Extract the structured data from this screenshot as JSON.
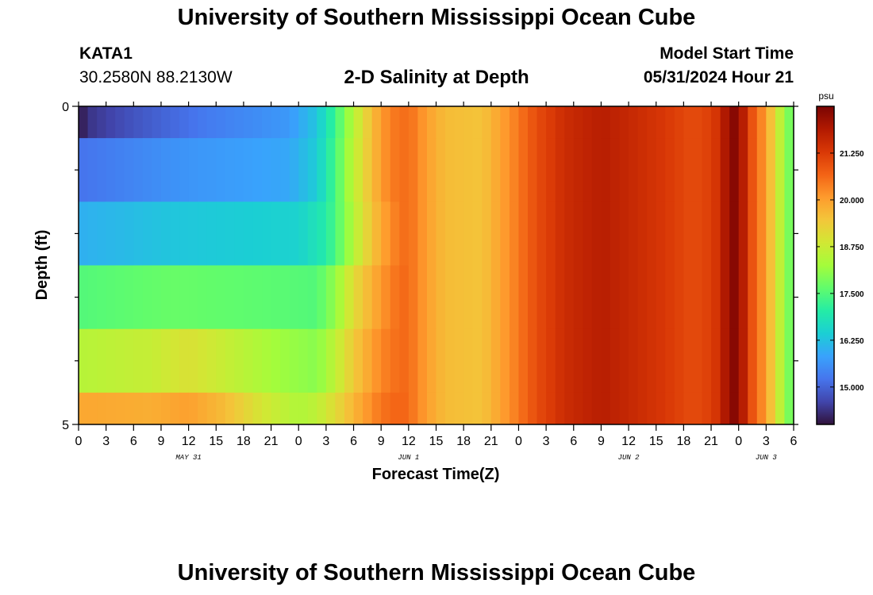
{
  "page": {
    "title": "University of Southern Mississippi Ocean Cube",
    "bottom_title": "University of Southern Mississippi Ocean Cube",
    "station_id": "KATA1",
    "station_coords": "30.2580N  88.2130W",
    "chart_title": "2-D Salinity at Depth",
    "model_start_label": "Model Start Time",
    "model_start_value": "05/31/2024 Hour 21"
  },
  "chart_data": {
    "type": "heatmap",
    "title": "2-D Salinity at Depth",
    "xlabel": "Forecast Time(Z)",
    "ylabel": "Depth (ft)",
    "colorbar_label": "psu",
    "x_start": "2024-05-31 00Z",
    "x_step_hours": 1,
    "x_range_hours": 78,
    "x_tick_labels": [
      "0",
      "3",
      "6",
      "9",
      "12",
      "15",
      "18",
      "21",
      "0",
      "3",
      "6",
      "9",
      "12",
      "15",
      "18",
      "21",
      "0",
      "3",
      "6",
      "9",
      "12",
      "15",
      "18",
      "21",
      "0",
      "3",
      "6"
    ],
    "date_labels": [
      {
        "label": "MAY 31",
        "hour": 12
      },
      {
        "label": "JUN 1",
        "hour": 36
      },
      {
        "label": "JUN 2",
        "hour": 60
      },
      {
        "label": "JUN 3",
        "hour": 75
      }
    ],
    "y_range": [
      0,
      5
    ],
    "y_tick_labels": [
      "0",
      "5"
    ],
    "depth_bands": [
      {
        "label": "0-0.5",
        "y0": 0,
        "y1": 0.5
      },
      {
        "label": "0.5-1.5",
        "y0": 0.5,
        "y1": 1.5
      },
      {
        "label": "1.5-2.5",
        "y0": 1.5,
        "y1": 2.5
      },
      {
        "label": "2.5-3.5",
        "y0": 2.5,
        "y1": 3.5
      },
      {
        "label": "3.5-4.5",
        "y0": 3.5,
        "y1": 4.5
      },
      {
        "label": "4.5-5",
        "y0": 4.5,
        "y1": 5
      }
    ],
    "value_range": [
      14.0,
      22.5
    ],
    "colorbar_ticks": [
      "15.000",
      "16.250",
      "17.500",
      "18.750",
      "20.000",
      "21.250"
    ],
    "colorbar_tick_values": [
      15.0,
      16.25,
      17.5,
      18.75,
      20.0,
      21.25
    ],
    "keypoints": {
      "surface": [
        [
          0,
          14.0
        ],
        [
          1,
          14.4
        ],
        [
          6,
          14.8
        ],
        [
          14,
          15.3
        ],
        [
          23,
          15.7
        ],
        [
          26,
          16.3
        ],
        [
          28,
          17.3
        ],
        [
          30,
          18.5
        ],
        [
          32,
          19.6
        ],
        [
          34,
          20.4
        ],
        [
          36,
          20.6
        ],
        [
          38,
          20.0
        ],
        [
          40,
          19.6
        ],
        [
          44,
          19.5
        ],
        [
          47,
          20.2
        ],
        [
          50,
          21.0
        ],
        [
          53,
          21.5
        ],
        [
          57,
          21.8
        ],
        [
          60,
          21.6
        ],
        [
          64,
          21.3
        ],
        [
          67,
          21.0
        ],
        [
          69,
          21.2
        ],
        [
          70,
          21.5
        ],
        [
          71,
          22.3
        ],
        [
          72,
          22.4
        ],
        [
          73,
          21.2
        ],
        [
          74,
          20.6
        ],
        [
          75,
          20.0
        ],
        [
          76,
          19.1
        ],
        [
          77,
          18.1
        ],
        [
          78,
          17.6
        ]
      ],
      "upper": [
        [
          0,
          15.2
        ],
        [
          10,
          15.6
        ],
        [
          23,
          15.9
        ],
        [
          26,
          16.4
        ],
        [
          28,
          17.4
        ],
        [
          30,
          18.6
        ],
        [
          32,
          19.6
        ],
        [
          34,
          20.4
        ],
        [
          36,
          20.6
        ],
        [
          38,
          20.0
        ],
        [
          40,
          19.6
        ],
        [
          44,
          19.5
        ],
        [
          47,
          20.2
        ],
        [
          50,
          21.0
        ],
        [
          53,
          21.5
        ],
        [
          57,
          21.8
        ],
        [
          60,
          21.6
        ],
        [
          64,
          21.3
        ],
        [
          67,
          21.0
        ],
        [
          69,
          21.2
        ],
        [
          70,
          21.5
        ],
        [
          71,
          22.3
        ],
        [
          72,
          22.4
        ],
        [
          73,
          21.2
        ],
        [
          74,
          20.6
        ],
        [
          75,
          20.0
        ],
        [
          76,
          19.1
        ],
        [
          77,
          18.1
        ],
        [
          78,
          17.6
        ]
      ],
      "middle": [
        [
          0,
          16.0
        ],
        [
          10,
          16.3
        ],
        [
          24,
          16.5
        ],
        [
          27,
          17.0
        ],
        [
          29,
          17.9
        ],
        [
          31,
          19.0
        ],
        [
          33,
          19.9
        ],
        [
          35,
          20.5
        ],
        [
          36,
          20.6
        ],
        [
          38,
          20.0
        ],
        [
          40,
          19.6
        ],
        [
          44,
          19.5
        ],
        [
          47,
          20.2
        ],
        [
          50,
          21.0
        ],
        [
          53,
          21.5
        ],
        [
          57,
          21.8
        ],
        [
          60,
          21.6
        ],
        [
          64,
          21.3
        ],
        [
          67,
          21.0
        ],
        [
          69,
          21.2
        ],
        [
          70,
          21.5
        ],
        [
          71,
          22.3
        ],
        [
          72,
          22.4
        ],
        [
          73,
          21.2
        ],
        [
          74,
          20.6
        ],
        [
          75,
          20.0
        ],
        [
          76,
          19.1
        ],
        [
          77,
          18.1
        ],
        [
          78,
          17.6
        ]
      ],
      "lower_mid": [
        [
          0,
          17.5
        ],
        [
          10,
          17.7
        ],
        [
          20,
          17.6
        ],
        [
          26,
          17.5
        ],
        [
          28,
          18.1
        ],
        [
          30,
          19.1
        ],
        [
          33,
          20.1
        ],
        [
          35,
          20.6
        ],
        [
          36,
          20.6
        ],
        [
          38,
          20.0
        ],
        [
          40,
          19.6
        ],
        [
          44,
          19.5
        ],
        [
          47,
          20.2
        ],
        [
          50,
          21.0
        ],
        [
          53,
          21.5
        ],
        [
          57,
          21.8
        ],
        [
          60,
          21.6
        ],
        [
          64,
          21.3
        ],
        [
          67,
          21.0
        ],
        [
          69,
          21.2
        ],
        [
          70,
          21.5
        ],
        [
          71,
          22.3
        ],
        [
          72,
          22.4
        ],
        [
          73,
          21.2
        ],
        [
          74,
          20.6
        ],
        [
          75,
          20.0
        ],
        [
          76,
          19.1
        ],
        [
          77,
          18.1
        ],
        [
          78,
          17.6
        ]
      ],
      "lower": [
        [
          0,
          18.5
        ],
        [
          8,
          18.7
        ],
        [
          12,
          19.0
        ],
        [
          16,
          18.7
        ],
        [
          22,
          18.2
        ],
        [
          26,
          18.0
        ],
        [
          28,
          18.6
        ],
        [
          30,
          19.4
        ],
        [
          33,
          20.3
        ],
        [
          35,
          20.6
        ],
        [
          36,
          20.6
        ],
        [
          38,
          20.0
        ],
        [
          40,
          19.6
        ],
        [
          44,
          19.5
        ],
        [
          47,
          20.2
        ],
        [
          50,
          21.0
        ],
        [
          53,
          21.5
        ],
        [
          57,
          21.8
        ],
        [
          60,
          21.6
        ],
        [
          64,
          21.3
        ],
        [
          67,
          21.0
        ],
        [
          69,
          21.2
        ],
        [
          70,
          21.5
        ],
        [
          71,
          22.3
        ],
        [
          72,
          22.4
        ],
        [
          73,
          21.2
        ],
        [
          74,
          20.6
        ],
        [
          75,
          20.0
        ],
        [
          76,
          19.1
        ],
        [
          77,
          18.1
        ],
        [
          78,
          17.6
        ]
      ],
      "bottom": [
        [
          0,
          19.9
        ],
        [
          8,
          19.8
        ],
        [
          12,
          20.0
        ],
        [
          16,
          19.6
        ],
        [
          20,
          18.9
        ],
        [
          24,
          18.4
        ],
        [
          26,
          18.6
        ],
        [
          28,
          19.1
        ],
        [
          30,
          19.7
        ],
        [
          33,
          20.5
        ],
        [
          35,
          20.7
        ],
        [
          36,
          20.6
        ],
        [
          38,
          20.0
        ],
        [
          40,
          19.6
        ],
        [
          44,
          19.5
        ],
        [
          47,
          20.2
        ],
        [
          50,
          21.0
        ],
        [
          53,
          21.5
        ],
        [
          57,
          21.8
        ],
        [
          60,
          21.6
        ],
        [
          64,
          21.3
        ],
        [
          67,
          21.0
        ],
        [
          69,
          21.2
        ],
        [
          70,
          21.5
        ],
        [
          71,
          22.3
        ],
        [
          72,
          22.4
        ],
        [
          73,
          21.2
        ],
        [
          74,
          20.6
        ],
        [
          75,
          20.0
        ],
        [
          76,
          19.1
        ],
        [
          77,
          18.1
        ],
        [
          78,
          17.6
        ]
      ]
    },
    "grid": false
  },
  "colors": {
    "scale": [
      "#30123b",
      "#4145ab",
      "#4675ed",
      "#39a2fc",
      "#1bcfd4",
      "#24eca6",
      "#61fc6c",
      "#a4fc3b",
      "#d1e834",
      "#f3c63a",
      "#fe9b2d",
      "#f36315",
      "#d93806",
      "#b11901",
      "#7a0403"
    ]
  }
}
